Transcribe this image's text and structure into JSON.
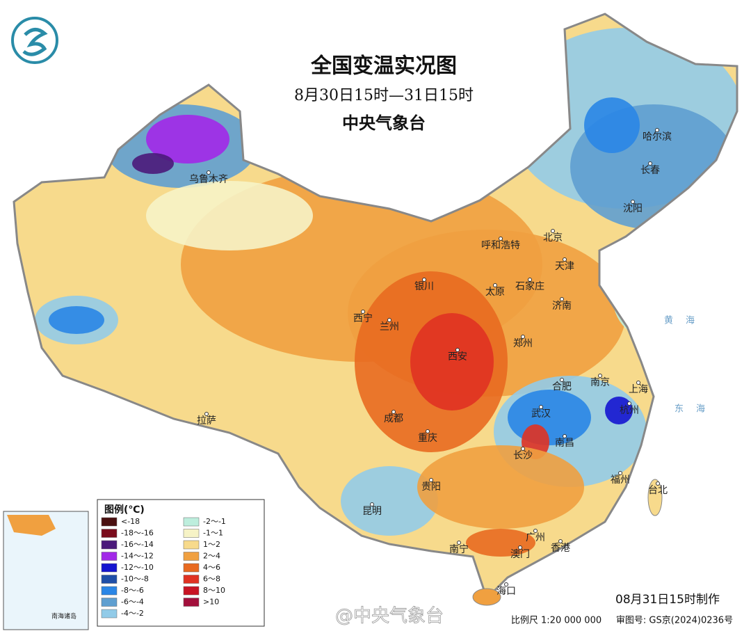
{
  "header": {
    "title": "全国变温实况图",
    "subtitle": "8月30日15时—31日15时",
    "organization": "中央气象台"
  },
  "legend": {
    "title": "图例(℃)",
    "items": [
      {
        "label": "<-18",
        "color": "#4a1010"
      },
      {
        "label": "-18～-16",
        "color": "#7a0c1c"
      },
      {
        "label": "-16～-14",
        "color": "#4b1a7a"
      },
      {
        "label": "-14～-12",
        "color": "#a228e8"
      },
      {
        "label": "-12～-10",
        "color": "#1515d0"
      },
      {
        "label": "-10～-8",
        "color": "#1f4fa8"
      },
      {
        "label": "-8～-6",
        "color": "#2a86e6"
      },
      {
        "label": "-6～-4",
        "color": "#5f9fd0"
      },
      {
        "label": "-4～-2",
        "color": "#92cbe8"
      },
      {
        "label": "-2～-1",
        "color": "#bdeedd"
      },
      {
        "label": "-1～1",
        "color": "#f6f3c6"
      },
      {
        "label": "1～2",
        "color": "#f7da8c"
      },
      {
        "label": "2～4",
        "color": "#f0a040"
      },
      {
        "label": "4～6",
        "color": "#e86a20"
      },
      {
        "label": "6～8",
        "color": "#e03222"
      },
      {
        "label": "8～10",
        "color": "#c81424"
      },
      {
        "label": ">10",
        "color": "#a3103c"
      }
    ]
  },
  "cities": [
    "乌鲁木齐",
    "哈尔滨",
    "长春",
    "沈阳",
    "呼和浩特",
    "北京",
    "天津",
    "银川",
    "太原",
    "石家庄",
    "西宁",
    "兰州",
    "济南",
    "郑州",
    "西安",
    "合肥",
    "南京",
    "上海",
    "成都",
    "武汉",
    "杭州",
    "重庆",
    "长沙",
    "南昌",
    "拉萨",
    "贵阳",
    "福州",
    "台北",
    "昆明",
    "南宁",
    "广州",
    "香港",
    "澳门",
    "海口"
  ],
  "seas": [
    "黄海",
    "东海"
  ],
  "inset": {
    "title": "南海诸岛"
  },
  "footer": {
    "made": "08月31日15时制作",
    "scale": "比例尺 1:20 000 000",
    "review": "审图号: GS京(2024)0236号",
    "watermark": "@中央气象台"
  }
}
